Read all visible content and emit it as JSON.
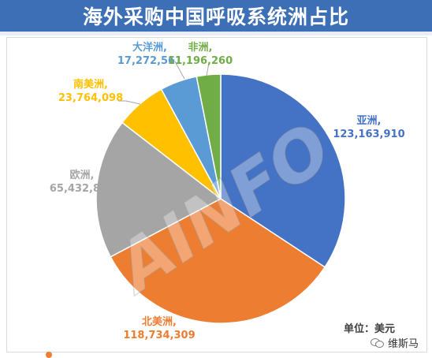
{
  "header": {
    "title": "海外采购中国呼吸系统洲占比"
  },
  "footer": {
    "unit_label": "单位：美元",
    "brand_text": "维斯马",
    "brand_icon": "wechat-icon"
  },
  "watermark": "AINFO",
  "chart_data": {
    "type": "pie",
    "title": "海外采购中国呼吸系统洲占比",
    "legend": "none",
    "slices": [
      {
        "name": "亚洲",
        "value": 123163910,
        "label_value": "123,163,910",
        "color": "#4472c4"
      },
      {
        "name": "北美洲",
        "value": 118734309,
        "label_value": "118,734,309",
        "color": "#ed7d31"
      },
      {
        "name": "欧洲",
        "value": 65432846,
        "label_value": "65,432,846",
        "color": "#a5a5a5"
      },
      {
        "name": "南美洲",
        "value": 23764098,
        "label_value": "23,764,098",
        "color": "#ffc000"
      },
      {
        "name": "大洋洲",
        "value": 17272561,
        "label_value": "17,272,561",
        "color": "#5b9bd5"
      },
      {
        "name": "非洲",
        "value": 11196260,
        "label_value": "11,196,260",
        "color": "#70ad47"
      }
    ]
  }
}
